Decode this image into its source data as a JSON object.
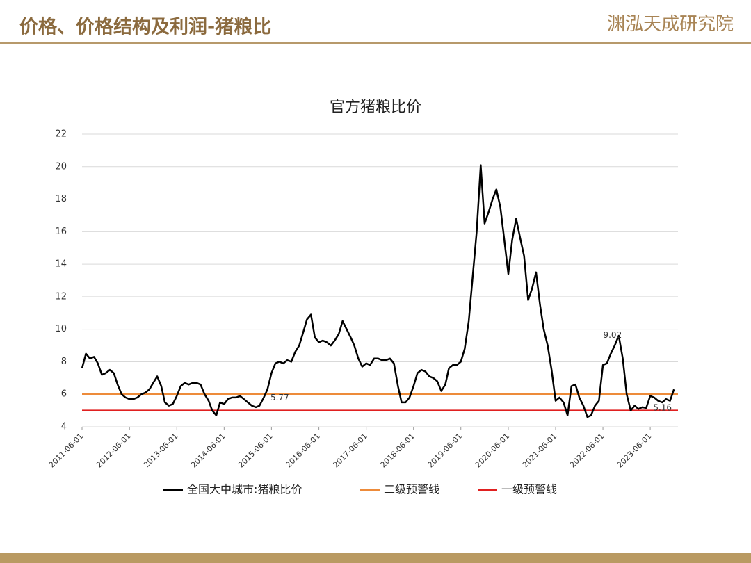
{
  "header": {
    "title": "价格、价格结构及利润-猪粮比",
    "logo": "渊泓天成研究院"
  },
  "chart_data": {
    "type": "line",
    "title": "官方猪粮比价",
    "x": [
      "2011-06-01",
      "2011-07-01",
      "2011-08-01",
      "2011-09-01",
      "2011-10-01",
      "2011-11-01",
      "2011-12-01",
      "2012-01-01",
      "2012-02-01",
      "2012-03-01",
      "2012-04-01",
      "2012-05-01",
      "2012-06-01",
      "2012-07-01",
      "2012-08-01",
      "2012-09-01",
      "2012-10-01",
      "2012-11-01",
      "2012-12-01",
      "2013-01-01",
      "2013-02-01",
      "2013-03-01",
      "2013-04-01",
      "2013-05-01",
      "2013-06-01",
      "2013-07-01",
      "2013-08-01",
      "2013-09-01",
      "2013-10-01",
      "2013-11-01",
      "2013-12-01",
      "2014-01-01",
      "2014-02-01",
      "2014-03-01",
      "2014-04-01",
      "2014-05-01",
      "2014-06-01",
      "2014-07-01",
      "2014-08-01",
      "2014-09-01",
      "2014-10-01",
      "2014-11-01",
      "2014-12-01",
      "2015-01-01",
      "2015-02-01",
      "2015-03-01",
      "2015-04-01",
      "2015-05-01",
      "2015-06-01",
      "2015-07-01",
      "2015-08-01",
      "2015-09-01",
      "2015-10-01",
      "2015-11-01",
      "2015-12-01",
      "2016-01-01",
      "2016-02-01",
      "2016-03-01",
      "2016-04-01",
      "2016-05-01",
      "2016-06-01",
      "2016-07-01",
      "2016-08-01",
      "2016-09-01",
      "2016-10-01",
      "2016-11-01",
      "2016-12-01",
      "2017-01-01",
      "2017-02-01",
      "2017-03-01",
      "2017-04-01",
      "2017-05-01",
      "2017-06-01",
      "2017-07-01",
      "2017-08-01",
      "2017-09-01",
      "2017-10-01",
      "2017-11-01",
      "2017-12-01",
      "2018-01-01",
      "2018-02-01",
      "2018-03-01",
      "2018-04-01",
      "2018-05-01",
      "2018-06-01",
      "2018-07-01",
      "2018-08-01",
      "2018-09-01",
      "2018-10-01",
      "2018-11-01",
      "2018-12-01",
      "2019-01-01",
      "2019-02-01",
      "2019-03-01",
      "2019-04-01",
      "2019-05-01",
      "2019-06-01",
      "2019-07-01",
      "2019-08-01",
      "2019-09-01",
      "2019-10-01",
      "2019-11-01",
      "2019-12-01",
      "2020-01-01",
      "2020-02-01",
      "2020-03-01",
      "2020-04-01",
      "2020-05-01",
      "2020-06-01",
      "2020-07-01",
      "2020-08-01",
      "2020-09-01",
      "2020-10-01",
      "2020-11-01",
      "2020-12-01",
      "2021-01-01",
      "2021-02-01",
      "2021-03-01",
      "2021-04-01",
      "2021-05-01",
      "2021-06-01",
      "2021-07-01",
      "2021-08-01",
      "2021-09-01",
      "2021-10-01",
      "2021-11-01",
      "2021-12-01",
      "2022-01-01",
      "2022-02-01",
      "2022-03-01",
      "2022-04-01",
      "2022-05-01",
      "2022-06-01",
      "2022-07-01",
      "2022-08-01",
      "2022-09-01",
      "2022-10-01",
      "2022-11-01",
      "2022-12-01",
      "2023-01-01",
      "2023-02-01",
      "2023-03-01",
      "2023-04-01",
      "2023-05-01",
      "2023-06-01",
      "2023-07-01",
      "2023-08-01",
      "2023-09-01",
      "2023-10-01",
      "2023-11-01",
      "2023-12-01"
    ],
    "series": [
      {
        "name": "全国大中城市:猪粮比价",
        "color": "#000000",
        "values": [
          7.6,
          8.5,
          8.2,
          8.3,
          7.9,
          7.2,
          7.3,
          7.5,
          7.3,
          6.6,
          6.0,
          5.8,
          5.7,
          5.7,
          5.8,
          6.0,
          6.1,
          6.3,
          6.7,
          7.1,
          6.5,
          5.5,
          5.3,
          5.4,
          5.9,
          6.5,
          6.7,
          6.6,
          6.7,
          6.7,
          6.6,
          6.0,
          5.6,
          5.0,
          4.7,
          5.5,
          5.4,
          5.7,
          5.8,
          5.8,
          5.9,
          5.7,
          5.5,
          5.3,
          5.2,
          5.3,
          5.77,
          6.3,
          7.3,
          7.9,
          8.0,
          7.9,
          8.1,
          8.0,
          8.6,
          9.0,
          9.8,
          10.6,
          10.9,
          9.5,
          9.2,
          9.3,
          9.2,
          9.0,
          9.3,
          9.7,
          10.5,
          10.0,
          9.5,
          9.0,
          8.2,
          7.7,
          7.9,
          7.8,
          8.2,
          8.2,
          8.1,
          8.1,
          8.2,
          7.9,
          6.5,
          5.5,
          5.5,
          5.8,
          6.5,
          7.3,
          7.5,
          7.4,
          7.1,
          7.0,
          6.8,
          6.2,
          6.6,
          7.6,
          7.8,
          7.8,
          8.0,
          8.8,
          10.5,
          13.3,
          16.0,
          20.1,
          16.5,
          17.2,
          18.0,
          18.6,
          17.5,
          15.5,
          13.4,
          15.5,
          16.8,
          15.6,
          14.5,
          11.8,
          12.5,
          13.5,
          11.5,
          10.0,
          9.0,
          7.5,
          5.6,
          5.8,
          5.5,
          4.7,
          6.5,
          6.6,
          5.8,
          5.3,
          4.6,
          4.7,
          5.3,
          5.6,
          7.8,
          7.9,
          8.5,
          9.02,
          9.6,
          8.2,
          6.0,
          5.0,
          5.3,
          5.1,
          5.2,
          5.16,
          5.9,
          5.8,
          5.6,
          5.5,
          5.7,
          5.6,
          6.3
        ]
      }
    ],
    "hlines": [
      {
        "name": "二级预警线",
        "color": "#ed8b3a",
        "value": 6
      },
      {
        "name": "一级预警线",
        "color": "#e02020",
        "value": 5
      }
    ],
    "annotations": [
      {
        "x": "2015-04-01",
        "value": 5.77
      },
      {
        "x": "2022-09-01",
        "value": 9.02
      },
      {
        "x": "2023-05-01",
        "value": 5.16
      }
    ],
    "xlim": [
      "2011-06-01",
      "2024-01-01"
    ],
    "xticks": [
      "2011-06-01",
      "2012-06-01",
      "2013-06-01",
      "2014-06-01",
      "2015-06-01",
      "2016-06-01",
      "2017-06-01",
      "2018-06-01",
      "2019-06-01",
      "2020-06-01",
      "2021-06-01",
      "2022-06-01",
      "2023-06-01"
    ],
    "ylim": [
      4,
      22
    ],
    "yticks": [
      4,
      6,
      8,
      10,
      12,
      14,
      16,
      18,
      20,
      22
    ],
    "grid": true
  }
}
